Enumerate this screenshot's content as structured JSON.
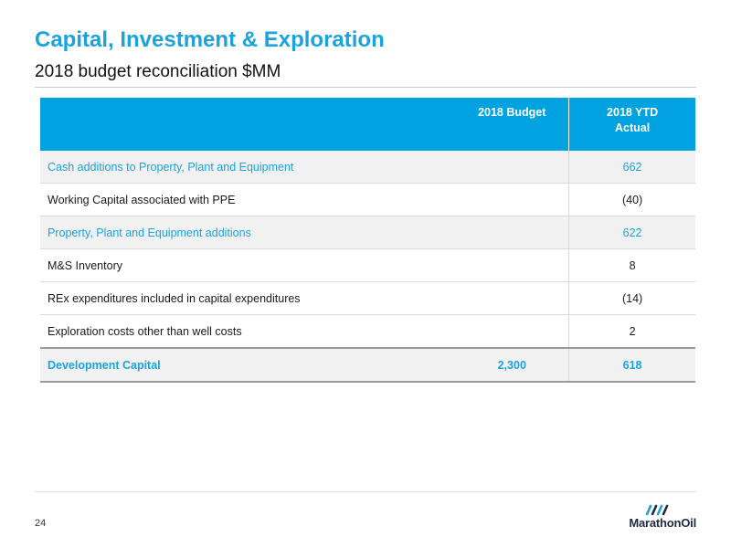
{
  "header": {
    "title": "Capital, Investment & Exploration",
    "subtitle": "2018 budget reconciliation $MM"
  },
  "table": {
    "columns": [
      "",
      "2018 Budget",
      "2018 YTD Actual"
    ],
    "column_budget": "2018 Budget",
    "column_actual_line1": "2018 YTD",
    "column_actual_line2": "Actual",
    "rows": [
      {
        "label": "Cash additions to Property, Plant and Equipment",
        "budget": "",
        "actual": "662"
      },
      {
        "label": "Working Capital associated with PPE",
        "budget": "",
        "actual": "(40)"
      },
      {
        "label": "Property, Plant and Equipment additions",
        "budget": "",
        "actual": "622"
      },
      {
        "label": "M&S Inventory",
        "budget": "",
        "actual": "8"
      },
      {
        "label": "REx expenditures included in capital expenditures",
        "budget": "",
        "actual": "(14)"
      },
      {
        "label": "Exploration costs other than well costs",
        "budget": "",
        "actual": "2"
      },
      {
        "label": "Development Capital",
        "budget": "2,300",
        "actual": "618"
      }
    ]
  },
  "footer": {
    "page_number": "24",
    "logo_text": "MarathonOil"
  },
  "colors": {
    "accent": "#1ba3dc",
    "header_fill": "#00a3e0",
    "row_shade": "#f1f1f1",
    "logo_navy": "#1f2a44"
  }
}
